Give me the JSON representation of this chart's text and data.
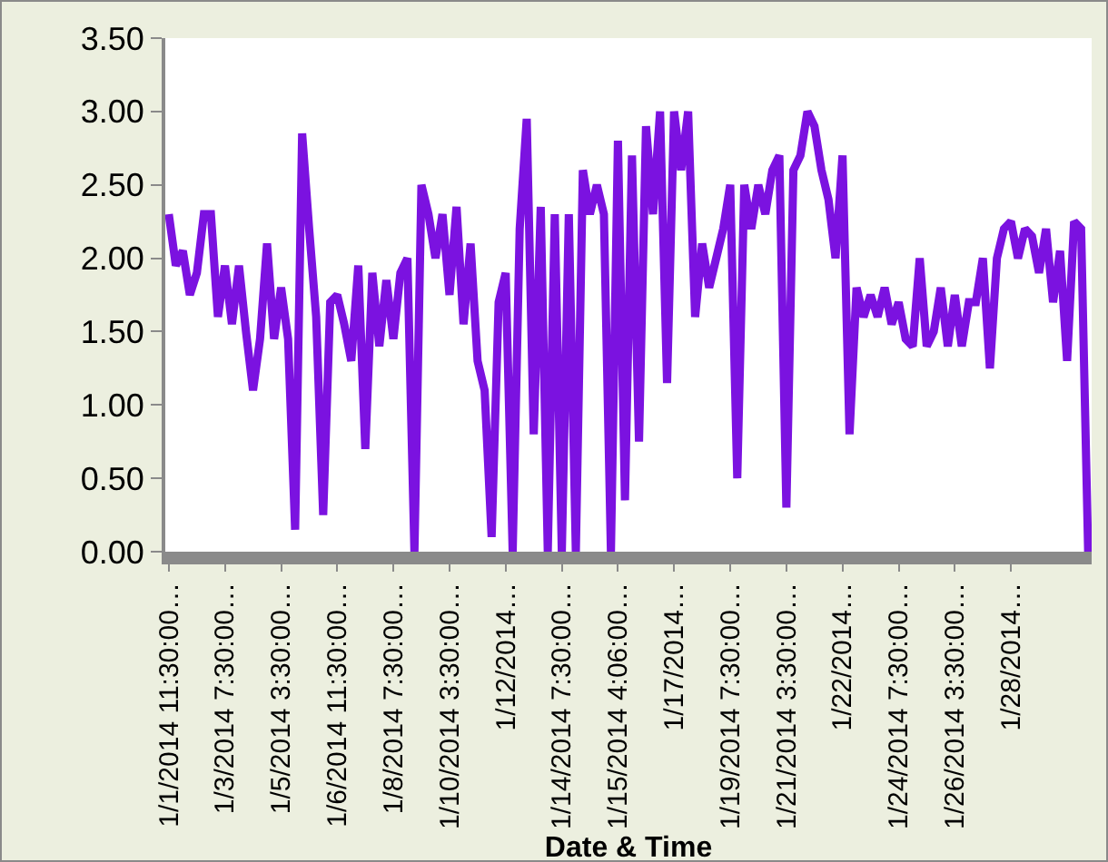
{
  "chart_data": {
    "type": "line",
    "xlabel": "Date & Time",
    "categories": [
      "1/1/2014 11:30:00…",
      null,
      null,
      null,
      null,
      null,
      null,
      null,
      "1/3/2014 7:30:00…",
      null,
      null,
      null,
      null,
      null,
      null,
      null,
      "1/5/2014 3:30:00…",
      null,
      null,
      null,
      null,
      null,
      null,
      null,
      "1/6/2014 11:30:00…",
      null,
      null,
      null,
      null,
      null,
      null,
      null,
      "1/8/2014 7:30:00…",
      null,
      null,
      null,
      null,
      null,
      null,
      null,
      "1/10/2014 3:30:00…",
      null,
      null,
      null,
      null,
      null,
      null,
      null,
      "1/12/2014…",
      null,
      null,
      null,
      null,
      null,
      null,
      null,
      "1/14/2014 7:30:00…",
      null,
      null,
      null,
      null,
      null,
      null,
      null,
      "1/15/2014 4:06:00…",
      null,
      null,
      null,
      null,
      null,
      null,
      null,
      "1/17/2014…",
      null,
      null,
      null,
      null,
      null,
      null,
      null,
      "1/19/2014 7:30:00…",
      null,
      null,
      null,
      null,
      null,
      null,
      null,
      "1/21/2014 3:30:00…",
      null,
      null,
      null,
      null,
      null,
      null,
      null,
      "1/22/2014…",
      null,
      null,
      null,
      null,
      null,
      null,
      null,
      "1/24/2014 7:30:00…",
      null,
      null,
      null,
      null,
      null,
      null,
      null,
      "1/26/2014 3:30:00…",
      null,
      null,
      null,
      null,
      null,
      null,
      null,
      "1/28/2014…",
      null,
      null,
      null,
      null,
      null,
      null,
      null,
      null,
      null,
      null,
      null
    ],
    "series": [
      {
        "color": "#7b12e0",
        "values": [
          2.3,
          1.95,
          2.05,
          1.75,
          1.9,
          2.3,
          2.3,
          1.6,
          1.95,
          1.55,
          1.95,
          1.5,
          1.1,
          1.45,
          2.1,
          1.45,
          1.8,
          1.45,
          0.15,
          2.85,
          2.2,
          1.6,
          0.25,
          1.7,
          1.75,
          1.55,
          1.3,
          1.95,
          0.7,
          1.9,
          1.4,
          1.85,
          1.45,
          1.9,
          2.0,
          0.0,
          2.5,
          2.3,
          2.0,
          2.3,
          1.75,
          2.35,
          1.55,
          2.1,
          1.3,
          1.1,
          0.1,
          1.7,
          1.9,
          0.0,
          2.2,
          2.95,
          0.8,
          2.35,
          0.0,
          2.3,
          0.0,
          2.3,
          0.0,
          2.6,
          2.3,
          2.5,
          2.3,
          0.0,
          2.8,
          0.35,
          2.7,
          0.75,
          2.9,
          2.3,
          3.0,
          1.15,
          3.0,
          2.6,
          3.0,
          1.6,
          2.1,
          1.8,
          2.0,
          2.2,
          2.5,
          0.5,
          2.5,
          2.2,
          2.5,
          2.3,
          2.6,
          2.7,
          0.3,
          2.6,
          2.7,
          3.0,
          2.9,
          2.6,
          2.4,
          2.0,
          2.7,
          0.8,
          1.8,
          1.6,
          1.75,
          1.6,
          1.8,
          1.55,
          1.7,
          1.45,
          1.4,
          2.0,
          1.4,
          1.5,
          1.8,
          1.4,
          1.75,
          1.4,
          1.7,
          1.7,
          2.0,
          1.25,
          2.0,
          2.2,
          2.25,
          2.0,
          2.2,
          2.15,
          1.9,
          2.2,
          1.7,
          2.05,
          1.3,
          2.25,
          2.2,
          0.0
        ]
      }
    ],
    "ylim": [
      0,
      3.5
    ],
    "yticks": [
      {
        "value": 0,
        "label": "0.00"
      },
      {
        "value": 0.5,
        "label": "0.50"
      },
      {
        "value": 1,
        "label": "1.00"
      },
      {
        "value": 1.5,
        "label": "1.50"
      },
      {
        "value": 2,
        "label": "2.00"
      },
      {
        "value": 2.5,
        "label": "2.50"
      },
      {
        "value": 3,
        "label": "3.00"
      },
      {
        "value": 3.5,
        "label": "3.50"
      }
    ],
    "grid": false,
    "marker": "none",
    "line_style": "solid"
  }
}
